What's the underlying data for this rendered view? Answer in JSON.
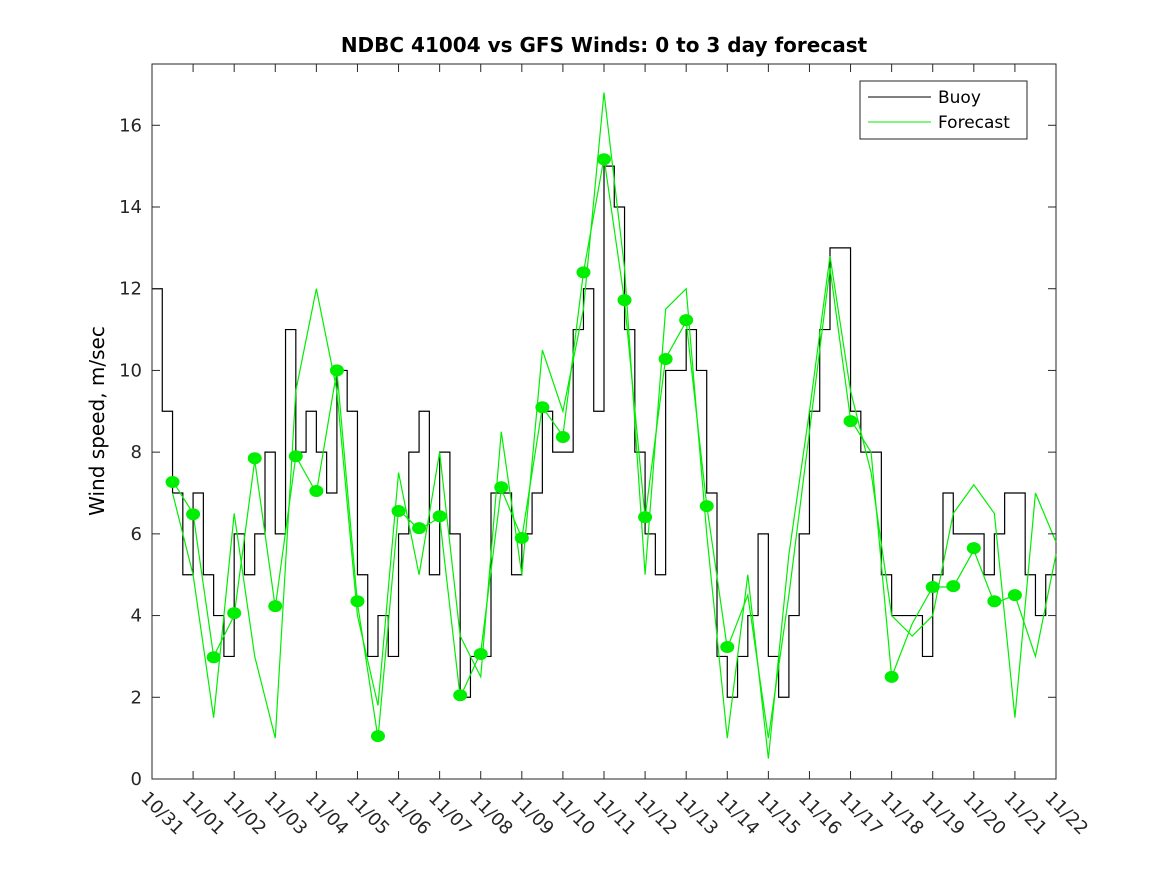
{
  "chart_data": {
    "type": "line",
    "title": "NDBC 41004 vs GFS Winds: 0 to 3 day forecast",
    "xlabel": "",
    "ylabel": "Wind speed, m/sec",
    "xlim": [
      0,
      22
    ],
    "ylim": [
      0,
      17.5
    ],
    "x_unit": "days since 10/31",
    "xtick_labels": [
      "10/31",
      "11/01",
      "11/02",
      "11/03",
      "11/04",
      "11/05",
      "11/06",
      "11/07",
      "11/08",
      "11/09",
      "11/10",
      "11/11",
      "11/12",
      "11/13",
      "11/14",
      "11/15",
      "11/16",
      "11/17",
      "11/18",
      "11/19",
      "11/20",
      "11/21",
      "11/22"
    ],
    "yticks": [
      0,
      2,
      4,
      6,
      8,
      10,
      12,
      14,
      16
    ],
    "grid": false,
    "legend": {
      "placement": "top-right",
      "entries": [
        "Buoy",
        "Forecast"
      ]
    },
    "colors": {
      "buoy": "#000000",
      "forecast": "#00ee00",
      "analysis": "#00ee00"
    },
    "series": [
      {
        "name": "Buoy",
        "style": "step",
        "x_start": 0,
        "x_step": 0.25,
        "values": [
          12,
          9,
          7,
          5,
          7,
          5,
          4,
          3,
          6,
          5,
          6,
          8,
          6,
          11,
          8,
          9,
          8,
          7,
          10,
          9,
          5,
          3,
          4,
          3,
          6,
          8,
          9,
          5,
          8,
          6,
          2,
          3,
          3,
          7,
          7,
          5,
          6,
          7,
          9,
          8,
          8,
          11,
          12,
          9,
          15,
          14,
          11,
          8,
          6,
          5,
          10,
          10,
          11,
          10,
          7,
          3,
          2,
          3,
          4,
          6,
          3,
          2,
          4,
          6,
          9,
          11,
          13,
          13,
          9,
          8,
          8,
          5,
          4,
          4,
          4,
          3,
          5,
          7,
          6,
          6,
          6,
          5,
          6,
          7,
          7,
          5,
          4,
          5,
          5
        ]
      },
      {
        "name": "Forecast",
        "x_start": 0.5,
        "x_step": 0.5,
        "values": [
          7.3,
          6.5,
          3.0,
          4.0,
          7.8,
          4.2,
          7.9,
          7.0,
          10.0,
          4.3,
          1.0,
          6.6,
          6.1,
          6.4,
          2.0,
          3.1,
          7.1,
          5.9,
          9.1,
          8.4,
          12.4,
          15.2,
          11.7,
          6.4,
          10.3,
          11.2,
          6.7,
          3.2,
          4.5,
          1.0,
          4.5,
          8.5,
          12.5,
          8.8,
          8.0,
          2.5,
          3.8,
          4.7,
          4.7,
          5.6,
          4.3,
          4.5,
          3.0,
          5.5
        ]
      },
      {
        "name": "Forecast",
        "x_start": 0.5,
        "x_step": 0.5,
        "values": [
          7.0,
          5.0,
          1.5,
          6.5,
          3.0,
          1.0,
          9.5,
          12.0,
          9.5,
          4.0,
          1.8,
          7.5,
          5.0,
          8.0,
          3.5,
          2.5,
          8.5,
          5.0,
          10.5,
          9.0,
          11.5,
          16.8,
          12.5,
          5.0,
          11.5,
          12.0,
          6.0,
          1.0,
          5.0,
          0.5,
          5.5,
          9.0,
          12.8,
          9.5,
          7.5,
          4.0,
          3.5,
          4.0,
          6.5,
          7.2,
          6.5,
          1.5,
          7.0,
          5.8
        ]
      }
    ],
    "analysis_points": {
      "x": [
        0.5,
        1,
        1.5,
        2,
        2.5,
        3,
        3.5,
        4,
        4.5,
        5,
        5.5,
        6,
        6.5,
        7,
        7.5,
        8,
        8.5,
        9,
        9.5,
        10,
        10.5,
        11,
        11.5,
        12,
        12.5,
        13,
        13.5,
        14,
        17,
        18,
        19,
        19.5,
        20,
        20.5,
        21
      ],
      "y": [
        7.27,
        6.48,
        2.98,
        4.06,
        7.85,
        4.23,
        7.9,
        7.05,
        10.0,
        4.35,
        1.05,
        6.56,
        6.14,
        6.43,
        2.05,
        3.06,
        7.14,
        5.9,
        9.1,
        8.37,
        12.4,
        15.17,
        11.72,
        6.41,
        10.28,
        11.23,
        6.68,
        3.23,
        8.76,
        2.5,
        4.7,
        4.72,
        5.65,
        4.35,
        4.5
      ]
    }
  }
}
